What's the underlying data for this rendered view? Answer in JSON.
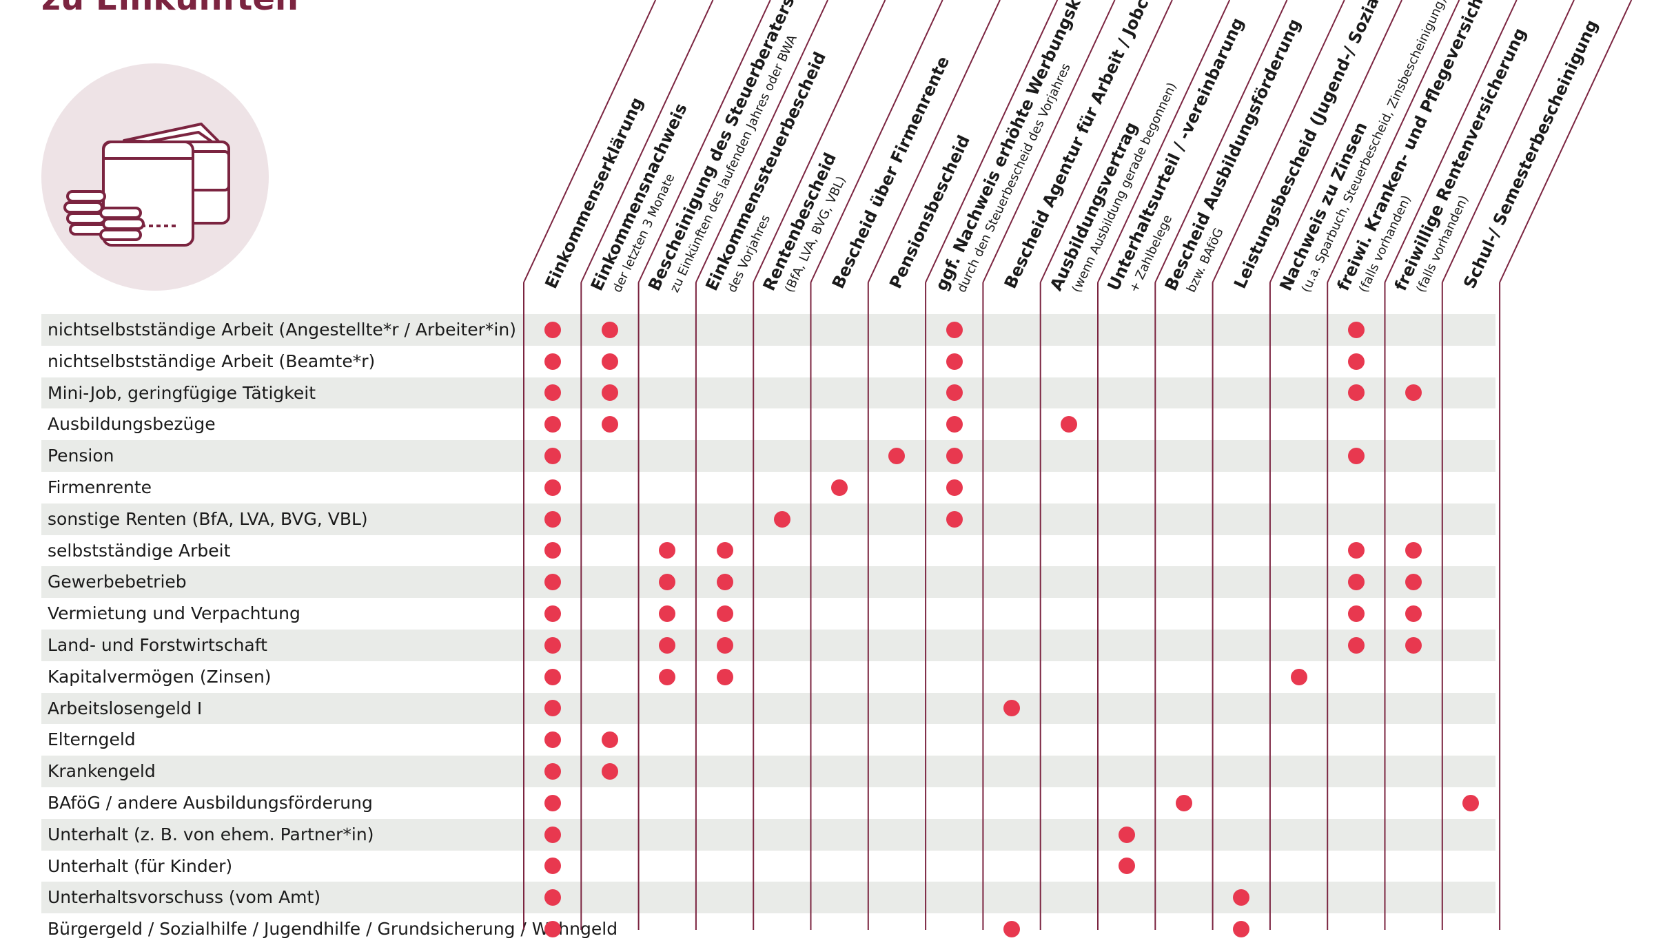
{
  "title": "zu Einkünften",
  "illustration": "wallet-with-coins-icon",
  "colors": {
    "accent": "#7b2440",
    "dot": "#e8384f",
    "stripe": "#e9ebe8",
    "circle_bg": "#eee3e6"
  },
  "columns": [
    {
      "main": "Einkommenserklärung",
      "sub": ""
    },
    {
      "main": "Einkommensnachweis",
      "sub": "der letzten 3 Monate"
    },
    {
      "main": "Bescheinigung des Steuerberaters",
      "sub": "zu Einkünften des laufenden Jahres oder BWA"
    },
    {
      "main": "Einkommenssteuerbescheid",
      "sub": "des Vorjahres"
    },
    {
      "main": "Rentenbescheid",
      "sub": "(BfA, LVA, BVG, VBL)"
    },
    {
      "main": "Bescheid über Firmenrente",
      "sub": ""
    },
    {
      "main": "Pensionsbescheid",
      "sub": ""
    },
    {
      "main": "ggf. Nachweis erhöhte Werbungskosten",
      "sub": "durch den Steuerbescheid des Vorjahres"
    },
    {
      "main": "Bescheid Agentur für Arbeit / Jobcenter",
      "sub": ""
    },
    {
      "main": "Ausbildungsvertrag",
      "sub": "(wenn Ausbildung gerade begonnen)"
    },
    {
      "main": "Unterhaltsurteil / -vereinbarung",
      "sub": "+ Zahlbelege"
    },
    {
      "main": "Bescheid Ausbildungsförderung",
      "sub": "bzw. BAföG"
    },
    {
      "main": "Leistungsbescheid (Jugend-/ Sozialamt)",
      "sub": ""
    },
    {
      "main": "Nachweis zu Zinsen",
      "sub": "(u.a. Sparbuch, Steuerbescheid, Zinsbescheinigung)"
    },
    {
      "main": "freiwi. Kranken- und Pflegeversicherung",
      "sub": "(falls vorhanden)"
    },
    {
      "main": "freiwillige Rentenversicherung",
      "sub": "(falls vorhanden)"
    },
    {
      "main": "Schul-/ Semesterbescheinigung",
      "sub": ""
    }
  ],
  "rows": [
    {
      "label": "nichtselbstständige Arbeit (Angestellte*r / Arbeiter*in)",
      "marks": [
        0,
        1,
        7,
        14
      ]
    },
    {
      "label": "nichtselbstständige Arbeit (Beamte*r)",
      "marks": [
        0,
        1,
        7,
        14
      ]
    },
    {
      "label": "Mini-Job, geringfügige Tätigkeit",
      "marks": [
        0,
        1,
        7,
        14,
        15
      ]
    },
    {
      "label": "Ausbildungsbezüge",
      "marks": [
        0,
        1,
        7,
        9
      ]
    },
    {
      "label": "Pension",
      "marks": [
        0,
        6,
        7,
        14
      ]
    },
    {
      "label": "Firmenrente",
      "marks": [
        0,
        5,
        7
      ]
    },
    {
      "label": "sonstige Renten (BfA, LVA, BVG, VBL)",
      "marks": [
        0,
        4,
        7
      ]
    },
    {
      "label": "selbstständige Arbeit",
      "marks": [
        0,
        2,
        3,
        14,
        15
      ]
    },
    {
      "label": "Gewerbebetrieb",
      "marks": [
        0,
        2,
        3,
        14,
        15
      ]
    },
    {
      "label": "Vermietung und Verpachtung",
      "marks": [
        0,
        2,
        3,
        14,
        15
      ]
    },
    {
      "label": "Land- und Forstwirtschaft",
      "marks": [
        0,
        2,
        3,
        14,
        15
      ]
    },
    {
      "label": "Kapitalvermögen (Zinsen)",
      "marks": [
        0,
        2,
        3,
        13
      ]
    },
    {
      "label": "Arbeitslosengeld I",
      "marks": [
        0,
        8
      ]
    },
    {
      "label": "Elterngeld",
      "marks": [
        0,
        1
      ]
    },
    {
      "label": "Krankengeld",
      "marks": [
        0,
        1
      ]
    },
    {
      "label": "BAföG / andere Ausbildungsförderung",
      "marks": [
        0,
        11,
        16
      ]
    },
    {
      "label": "Unterhalt (z. B. von ehem. Partner*in)",
      "marks": [
        0,
        10
      ]
    },
    {
      "label": "Unterhalt (für Kinder)",
      "marks": [
        0,
        10
      ]
    },
    {
      "label": "Unterhaltsvorschuss (vom Amt)",
      "marks": [
        0,
        12
      ]
    },
    {
      "label": "Bürgergeld / Sozialhilfe / Jugendhilfe / Grundsicherung / Wohngeld",
      "marks": [
        0,
        8,
        12
      ]
    }
  ]
}
